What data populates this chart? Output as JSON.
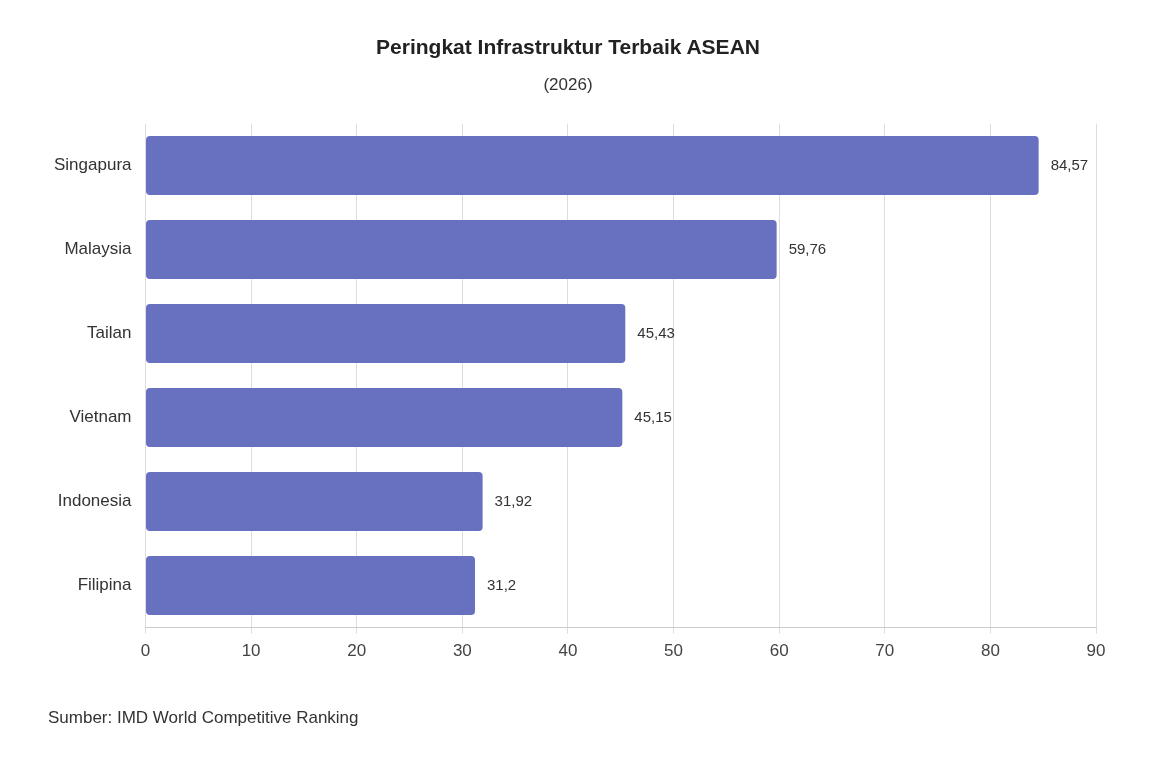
{
  "chart_data": {
    "type": "bar",
    "orientation": "horizontal",
    "title": "Peringkat Infrastruktur Terbaik ASEAN",
    "subtitle": "(2026)",
    "categories": [
      "Singapura",
      "Malaysia",
      "Tailan",
      "Vietnam",
      "Indonesia",
      "Filipina"
    ],
    "values": [
      84.57,
      59.76,
      45.43,
      45.15,
      31.92,
      31.2
    ],
    "value_labels": [
      "84,57",
      "59,76",
      "45,43",
      "45,15",
      "31,92",
      "31,2"
    ],
    "color": "#6870c0",
    "xlim": [
      0,
      90
    ],
    "xticks": [
      0,
      10,
      20,
      30,
      40,
      50,
      60,
      70,
      80,
      90
    ],
    "grid": "x",
    "legend": false,
    "annotations": [
      "Sumber: IMD World Competitive Ranking"
    ]
  }
}
